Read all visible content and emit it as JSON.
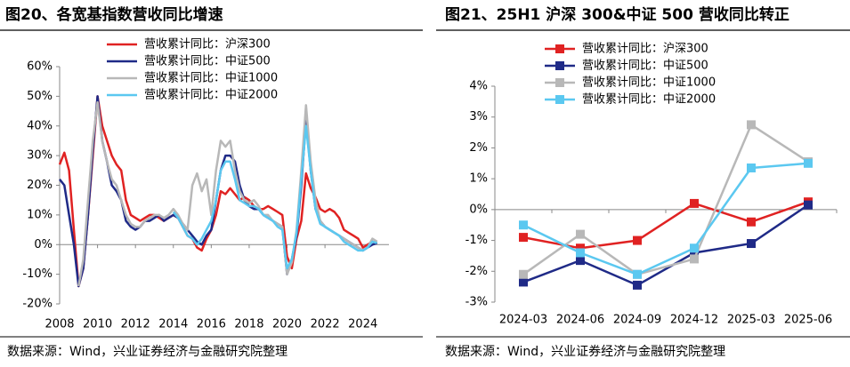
{
  "chart_data": [
    {
      "type": "line",
      "title": "图20、各宽基指数营收同比增速",
      "source": "数据来源：Wind，兴业证券经济与金融研究院整理",
      "x": [
        2008,
        2008.25,
        2008.5,
        2008.75,
        2009,
        2009.25,
        2009.5,
        2009.75,
        2010,
        2010.25,
        2010.5,
        2010.75,
        2011,
        2011.25,
        2011.5,
        2011.75,
        2012,
        2012.25,
        2012.5,
        2012.75,
        2013,
        2013.25,
        2013.5,
        2013.75,
        2014,
        2014.25,
        2014.5,
        2014.75,
        2015,
        2015.25,
        2015.5,
        2015.75,
        2016,
        2016.25,
        2016.5,
        2016.75,
        2017,
        2017.25,
        2017.5,
        2017.75,
        2018,
        2018.25,
        2018.5,
        2018.75,
        2019,
        2019.25,
        2019.5,
        2019.75,
        2020,
        2020.25,
        2020.5,
        2020.75,
        2021,
        2021.25,
        2021.5,
        2021.75,
        2022,
        2022.25,
        2022.5,
        2022.75,
        2023,
        2023.25,
        2023.5,
        2023.75,
        2024,
        2024.25,
        2024.5,
        2024.75
      ],
      "series": [
        {
          "name": "营收累计同比：沪深300",
          "color": "#e02222",
          "values": [
            27,
            31,
            25,
            5,
            -14,
            -8,
            10,
            30,
            50,
            40,
            35,
            30,
            27,
            25,
            15,
            10,
            9,
            8,
            9,
            10,
            10,
            9,
            8,
            9,
            10,
            9,
            6,
            3,
            2,
            -1,
            -2,
            2,
            5,
            10,
            18,
            17,
            19,
            17,
            15,
            16,
            15,
            13,
            12,
            12,
            13,
            12,
            11,
            10,
            -4,
            -8,
            2,
            8,
            24,
            19,
            16,
            12,
            11,
            12,
            11,
            9,
            5,
            4,
            3,
            2,
            -1,
            0,
            1,
            0.3
          ]
        },
        {
          "name": "营收累计同比：中证500",
          "color": "#1f2a87",
          "values": [
            22,
            20,
            10,
            0,
            -14,
            -8,
            10,
            32,
            50,
            35,
            28,
            20,
            18,
            15,
            8,
            6,
            5,
            6,
            8,
            8,
            9,
            10,
            8,
            9,
            10,
            9,
            7,
            5,
            3,
            1,
            0,
            3,
            5,
            15,
            25,
            30,
            30,
            28,
            20,
            15,
            13,
            12,
            12,
            10,
            9,
            8,
            7,
            6,
            -10,
            -5,
            3,
            20,
            42,
            25,
            12,
            8,
            6,
            5,
            4,
            3,
            2,
            1,
            0,
            -1,
            -2,
            -1,
            0,
            0.5
          ]
        },
        {
          "name": "营收累计同比：中证1000",
          "color": "#b8b8b8",
          "values": [
            null,
            null,
            null,
            null,
            -14,
            -5,
            15,
            35,
            48,
            35,
            28,
            22,
            20,
            15,
            10,
            7,
            6,
            6,
            8,
            9,
            10,
            10,
            9,
            10,
            12,
            10,
            7,
            5,
            20,
            24,
            18,
            22,
            10,
            25,
            35,
            33,
            35,
            25,
            18,
            15,
            14,
            15,
            13,
            10,
            10,
            8,
            7,
            6,
            -10,
            -6,
            5,
            25,
            47,
            28,
            15,
            8,
            6,
            5,
            4,
            3,
            2,
            1,
            0,
            -1,
            -2,
            -1,
            2,
            1
          ]
        },
        {
          "name": "营收累计同比：中证2000",
          "color": "#5bc8f0",
          "values": [
            null,
            null,
            null,
            null,
            null,
            null,
            null,
            null,
            null,
            null,
            null,
            null,
            null,
            null,
            null,
            null,
            null,
            null,
            null,
            null,
            null,
            null,
            null,
            null,
            11,
            9,
            6,
            3,
            2,
            0,
            2,
            5,
            8,
            15,
            25,
            28,
            28,
            22,
            15,
            14,
            13,
            13,
            12,
            10,
            9,
            8,
            6,
            5,
            -8,
            -5,
            4,
            22,
            40,
            25,
            12,
            7,
            6,
            5,
            4,
            3,
            1,
            0,
            -1,
            -2,
            -2,
            -1,
            1,
            0.5
          ]
        }
      ],
      "xlim": [
        2008,
        2025
      ],
      "xticks": [
        2008,
        2010,
        2012,
        2014,
        2016,
        2018,
        2020,
        2022,
        2024
      ],
      "ylim": [
        -20,
        60
      ],
      "yticks": [
        {
          "value": -20,
          "label": "-20%"
        },
        {
          "value": -10,
          "label": "-10%"
        },
        {
          "value": 0,
          "label": "0%"
        },
        {
          "value": 10,
          "label": "10%"
        },
        {
          "value": 20,
          "label": "20%"
        },
        {
          "value": 30,
          "label": "30%"
        },
        {
          "value": 40,
          "label": "40%"
        },
        {
          "value": 50,
          "label": "50%"
        },
        {
          "value": 60,
          "label": "60%"
        }
      ],
      "grid": false
    },
    {
      "type": "line",
      "title": "图21、25H1 沪深 300&中证 500 营收同比转正",
      "source": "数据来源：Wind，兴业证券经济与金融研究院整理",
      "categories": [
        "2024-03",
        "2024-06",
        "2024-09",
        "2024-12",
        "2025-03",
        "2025-06"
      ],
      "marker": "square",
      "series": [
        {
          "name": "营收累计同比：沪深300",
          "color": "#e02222",
          "values": [
            -0.9,
            -1.25,
            -1.0,
            0.2,
            -0.4,
            0.25
          ]
        },
        {
          "name": "营收累计同比：中证500",
          "color": "#1f2a87",
          "values": [
            -2.35,
            -1.65,
            -2.45,
            -1.4,
            -1.1,
            0.15
          ]
        },
        {
          "name": "营收累计同比：中证1000",
          "color": "#b8b8b8",
          "values": [
            -2.1,
            -0.8,
            -2.1,
            -1.6,
            2.75,
            1.55
          ]
        },
        {
          "name": "营收累计同比：中证2000",
          "color": "#5bc8f0",
          "values": [
            -0.5,
            -1.4,
            -2.1,
            -1.25,
            1.35,
            1.5
          ]
        }
      ],
      "ylim": [
        -3,
        4
      ],
      "yticks": [
        {
          "value": -3,
          "label": "-3%"
        },
        {
          "value": -2,
          "label": "-2%"
        },
        {
          "value": -1,
          "label": "-1%"
        },
        {
          "value": 0,
          "label": "0%"
        },
        {
          "value": 1,
          "label": "1%"
        },
        {
          "value": 2,
          "label": "2%"
        },
        {
          "value": 3,
          "label": "3%"
        },
        {
          "value": 4,
          "label": "4%"
        }
      ],
      "grid": false
    }
  ]
}
